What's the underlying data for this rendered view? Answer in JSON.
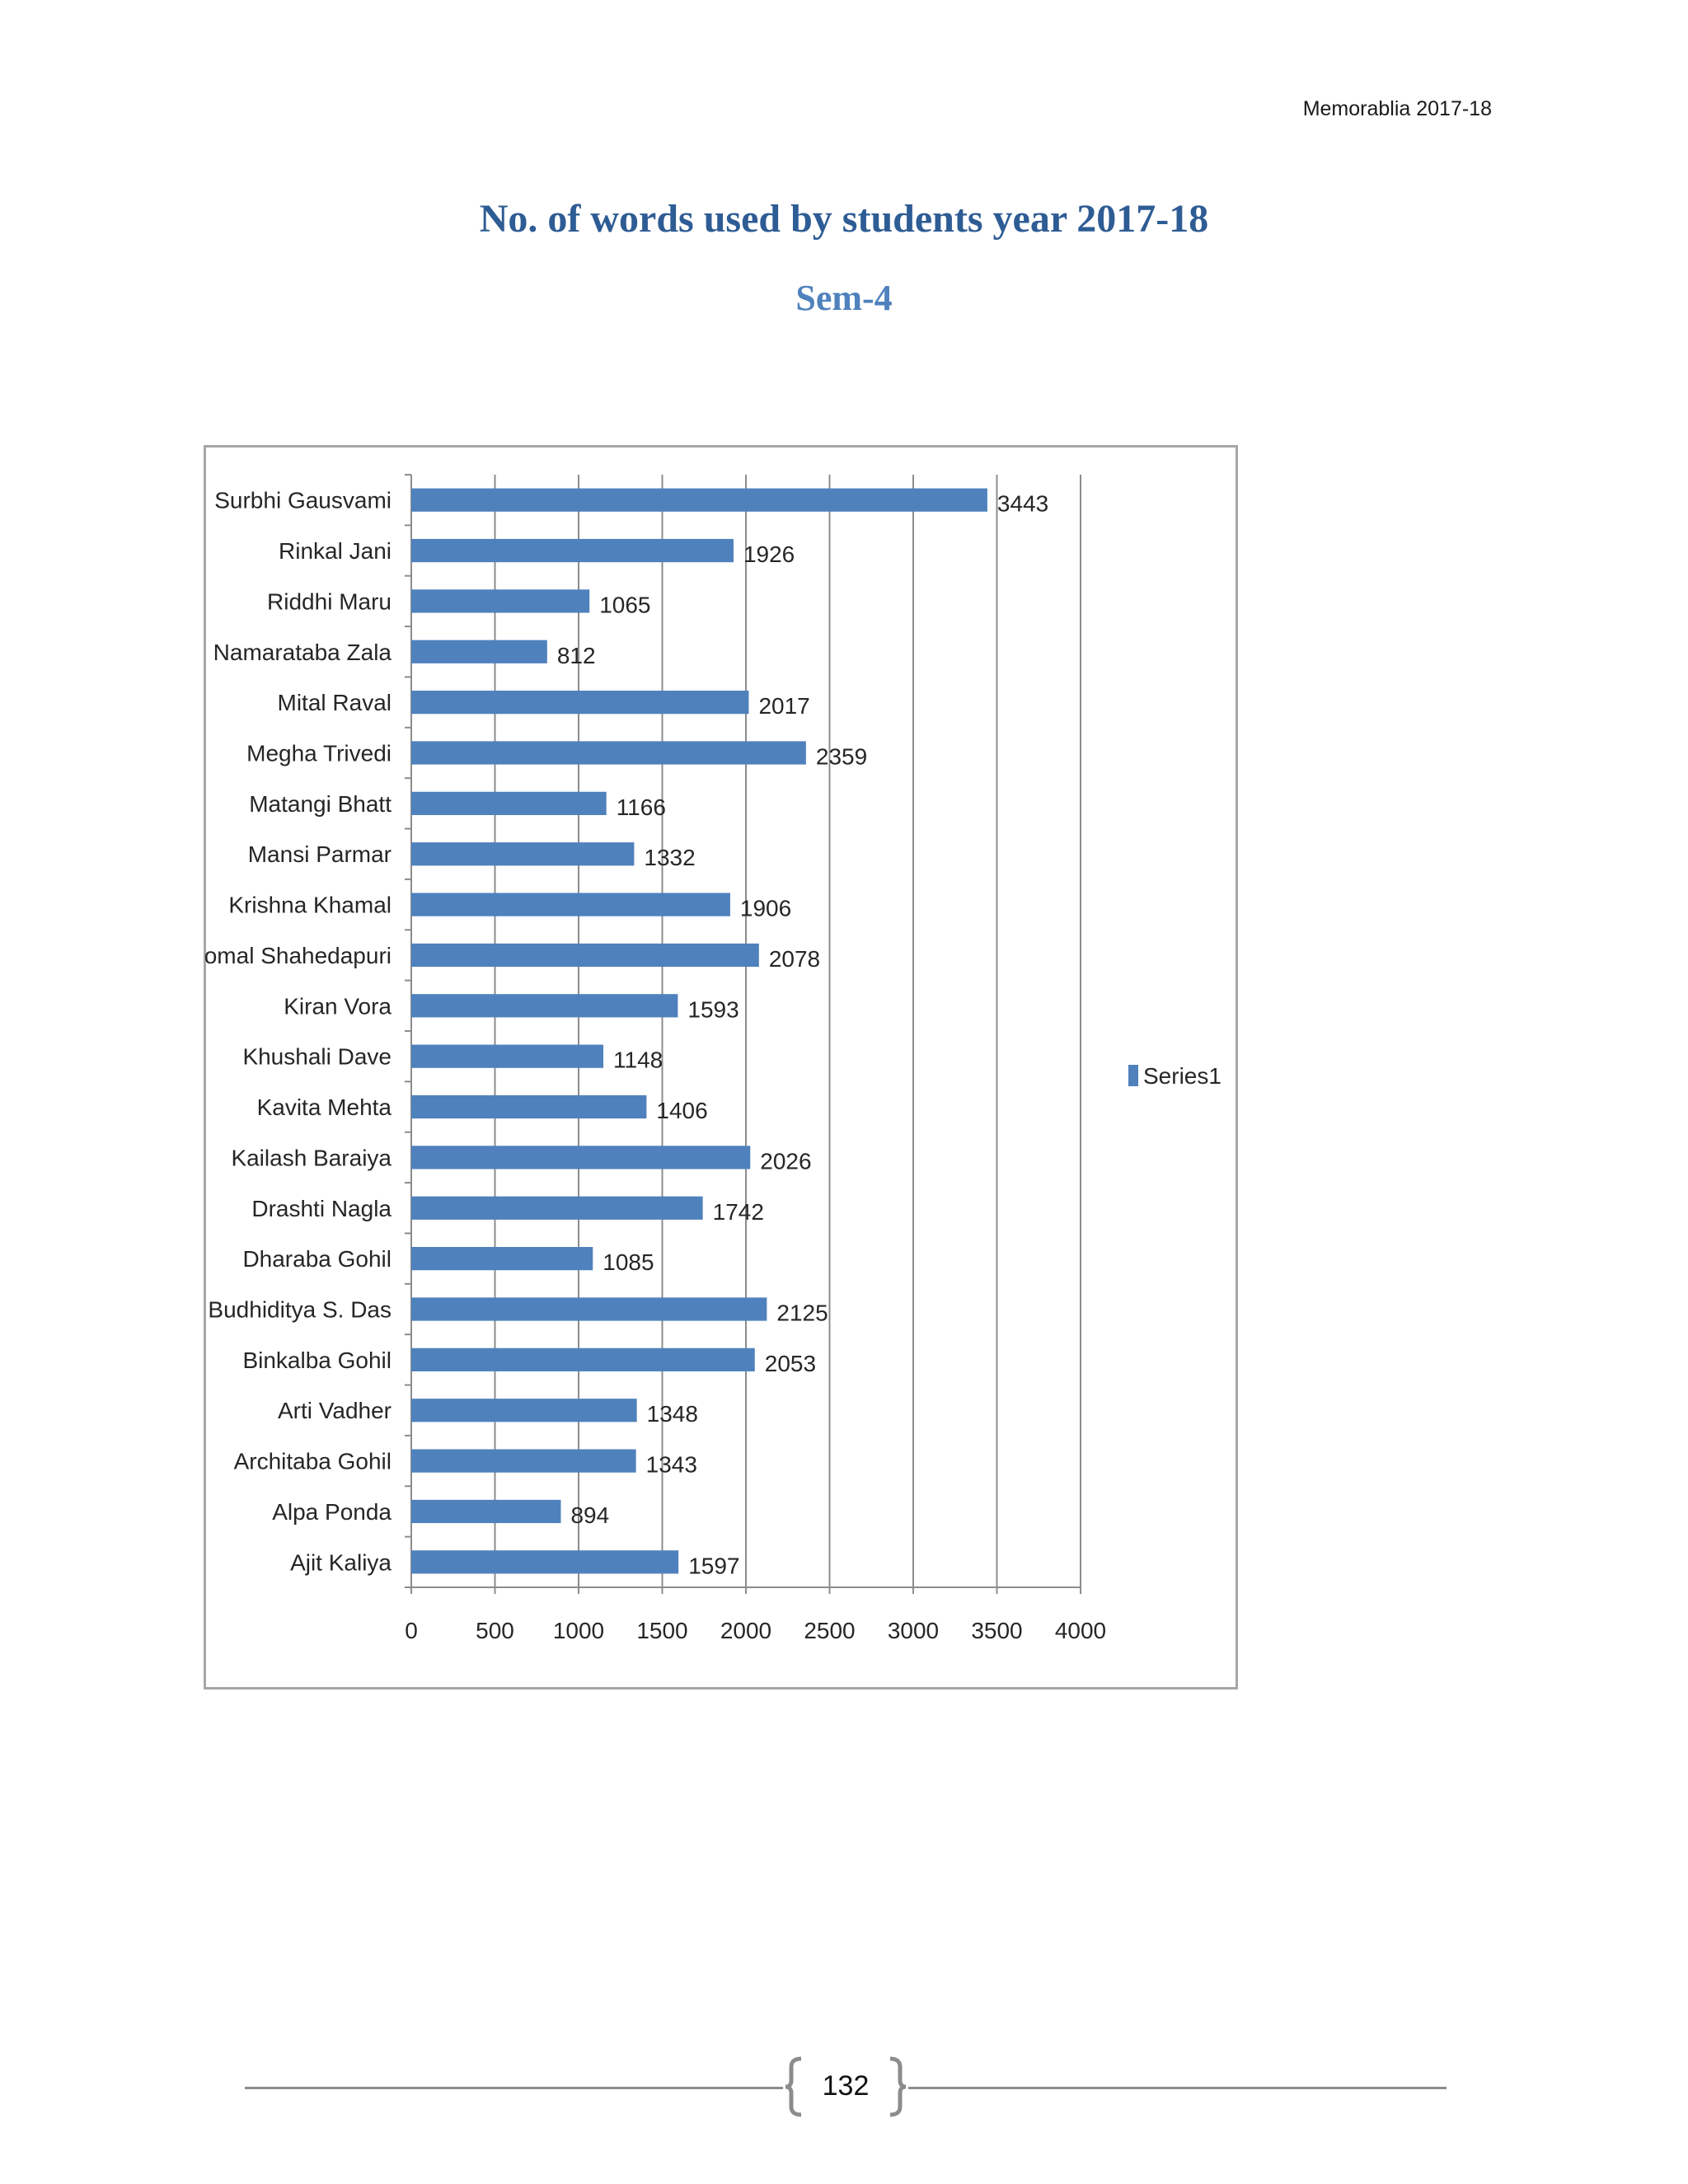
{
  "header": {
    "running_title": "Memorablia 2017-18"
  },
  "document": {
    "title": "No. of words used by students year 2017-18",
    "subtitle": "Sem-4"
  },
  "chart_data": {
    "type": "bar",
    "orientation": "horizontal",
    "categories": [
      "Surbhi Gausvami",
      "Rinkal Jani",
      "Riddhi Maru",
      "Namarataba  Zala",
      "Mital Raval",
      "Megha Trivedi",
      "Matangi Bhatt",
      "Mansi Parmar",
      "Krishna Khamal",
      "Komal Shahedapuri",
      "Kiran Vora",
      "Khushali Dave",
      "Kavita Mehta",
      "Kailash Baraiya",
      "Drashti Nagla",
      "Dharaba Gohil",
      "Budhiditya S. Das",
      "Binkalba Gohil",
      "Arti Vadher",
      "Architaba Gohil",
      "Alpa Ponda",
      "Ajit Kaliya"
    ],
    "series": [
      {
        "name": "Series1",
        "values": [
          3443,
          1926,
          1065,
          812,
          2017,
          2359,
          1166,
          1332,
          1906,
          2078,
          1593,
          1148,
          1406,
          2026,
          1742,
          1085,
          2125,
          2053,
          1348,
          1343,
          894,
          1597
        ]
      }
    ],
    "xlim": [
      0,
      4000
    ],
    "xticks": [
      0,
      500,
      1000,
      1500,
      2000,
      2500,
      3000,
      3500,
      4000
    ],
    "grid": "vertical",
    "legend": "right",
    "bar_color": "#4f81bd",
    "title": "",
    "xlabel": "",
    "ylabel": ""
  },
  "footer": {
    "page_number": "132"
  }
}
